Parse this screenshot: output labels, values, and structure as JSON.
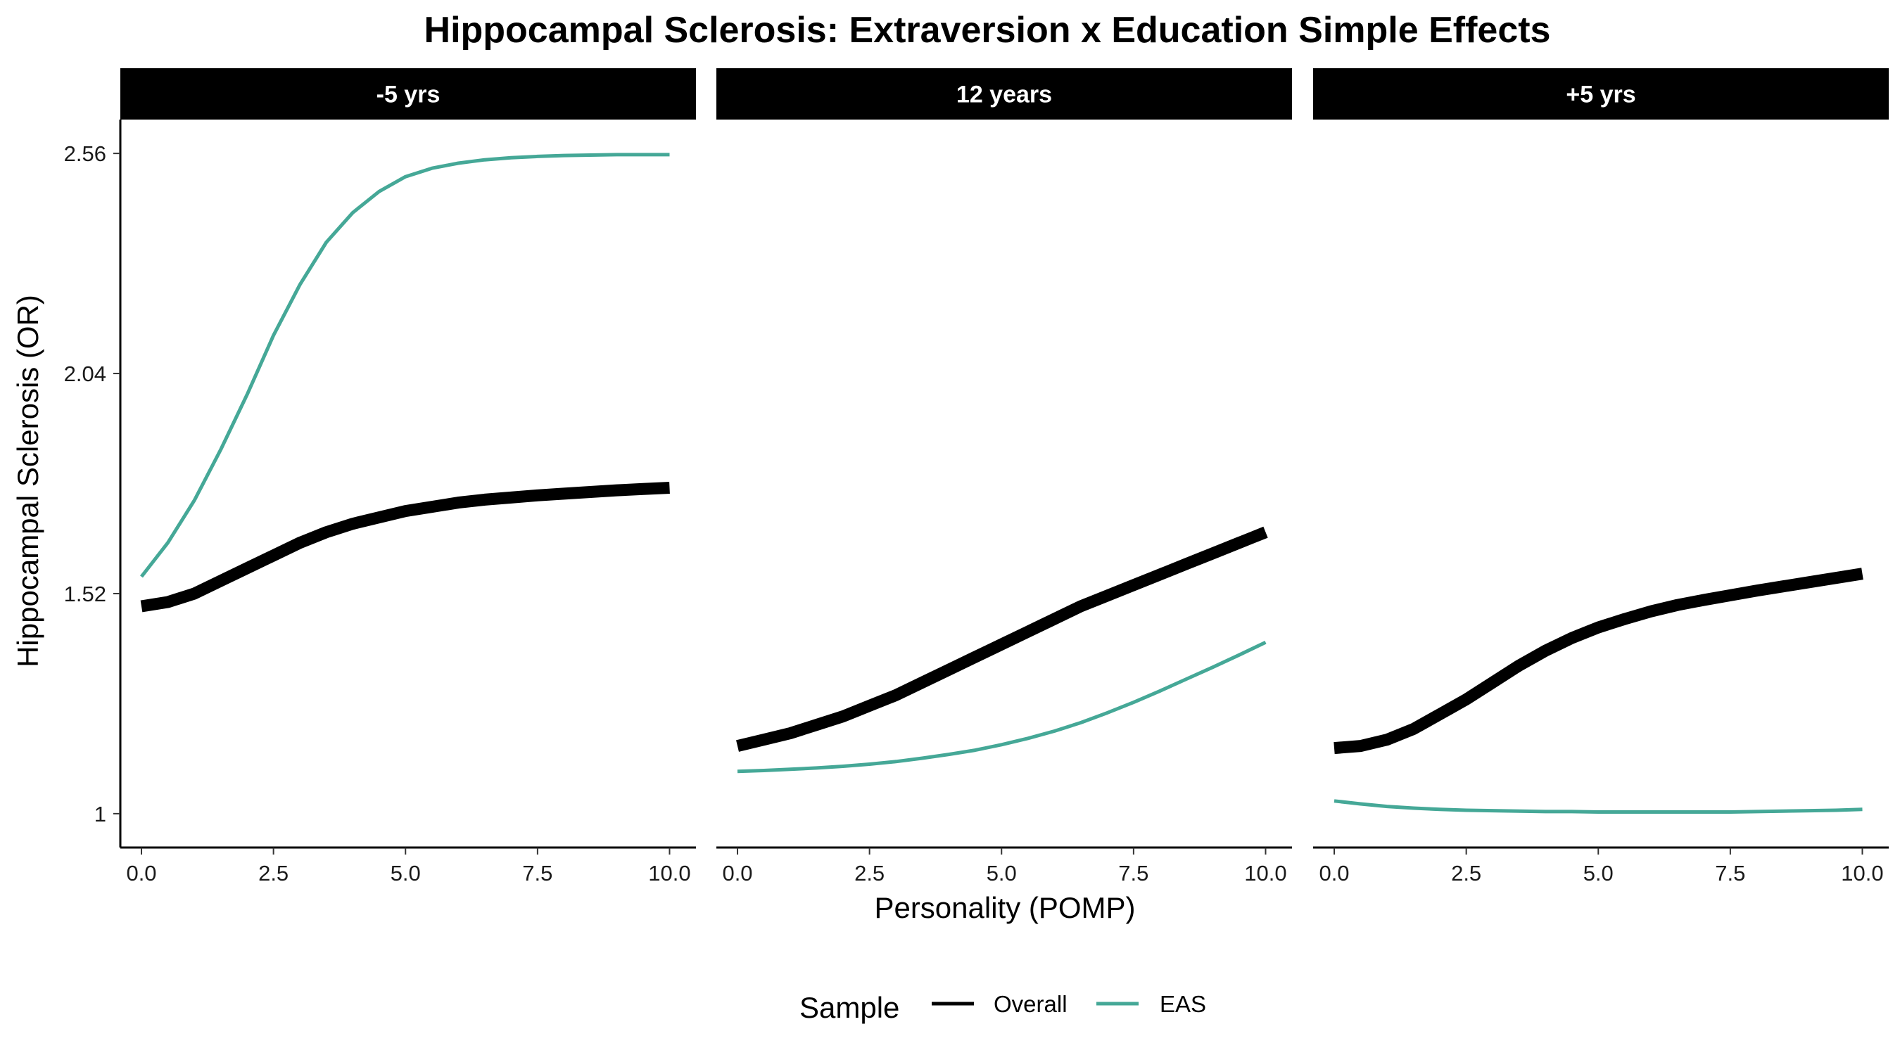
{
  "chart_data": {
    "type": "line",
    "title": "Hippocampal Sclerosis: Extraversion x Education Simple Effects",
    "xlabel": "Personality (POMP)",
    "ylabel": "Hippocampal Sclerosis (OR)",
    "xlim": [
      -0.4,
      10.5
    ],
    "ylim": [
      0.92,
      2.64
    ],
    "x_ticks": [
      0.0,
      2.5,
      5.0,
      7.5,
      10.0
    ],
    "x_tick_labels": [
      "0.0",
      "2.5",
      "5.0",
      "7.5",
      "10.0"
    ],
    "y_ticks": [
      1.0,
      1.52,
      2.04,
      2.56
    ],
    "y_tick_labels": [
      "1",
      "1.52",
      "2.04",
      "2.56"
    ],
    "grid": false,
    "legend": {
      "title": "Sample",
      "position": "bottom",
      "entries": [
        {
          "name": "Overall",
          "color": "#000000"
        },
        {
          "name": "EAS",
          "color": "#45A897"
        }
      ]
    },
    "x": [
      0,
      0.5,
      1,
      1.5,
      2,
      2.5,
      3,
      3.5,
      4,
      4.5,
      5,
      5.5,
      6,
      6.5,
      7,
      7.5,
      8,
      8.5,
      9,
      9.5,
      10
    ],
    "panels": [
      {
        "label": "-5 yrs",
        "series": [
          {
            "name": "Overall",
            "color": "#000000",
            "values": [
              1.49,
              1.5,
              1.52,
              1.55,
              1.58,
              1.61,
              1.64,
              1.665,
              1.685,
              1.7,
              1.715,
              1.725,
              1.735,
              1.742,
              1.747,
              1.752,
              1.756,
              1.76,
              1.764,
              1.767,
              1.77
            ]
          },
          {
            "name": "EAS",
            "color": "#45A897",
            "values": [
              1.56,
              1.64,
              1.74,
              1.86,
              1.99,
              2.13,
              2.25,
              2.35,
              2.42,
              2.47,
              2.505,
              2.525,
              2.537,
              2.545,
              2.55,
              2.553,
              2.555,
              2.556,
              2.557,
              2.557,
              2.557
            ]
          }
        ]
      },
      {
        "label": "12 years",
        "series": [
          {
            "name": "Overall",
            "color": "#000000",
            "values": [
              1.16,
              1.175,
              1.19,
              1.21,
              1.23,
              1.255,
              1.28,
              1.31,
              1.34,
              1.37,
              1.4,
              1.43,
              1.46,
              1.49,
              1.515,
              1.54,
              1.565,
              1.59,
              1.615,
              1.64,
              1.665
            ]
          },
          {
            "name": "EAS",
            "color": "#45A897",
            "values": [
              1.1,
              1.102,
              1.105,
              1.108,
              1.112,
              1.117,
              1.123,
              1.131,
              1.14,
              1.15,
              1.163,
              1.178,
              1.195,
              1.215,
              1.238,
              1.263,
              1.29,
              1.318,
              1.346,
              1.375,
              1.405
            ]
          }
        ]
      },
      {
        "label": "+5 yrs",
        "series": [
          {
            "name": "Overall",
            "color": "#000000",
            "values": [
              1.155,
              1.16,
              1.175,
              1.2,
              1.235,
              1.27,
              1.31,
              1.35,
              1.385,
              1.415,
              1.44,
              1.46,
              1.478,
              1.493,
              1.505,
              1.516,
              1.527,
              1.537,
              1.547,
              1.557,
              1.567
            ]
          },
          {
            "name": "EAS",
            "color": "#45A897",
            "values": [
              1.03,
              1.023,
              1.017,
              1.013,
              1.01,
              1.008,
              1.007,
              1.006,
              1.005,
              1.005,
              1.004,
              1.004,
              1.004,
              1.004,
              1.004,
              1.004,
              1.005,
              1.006,
              1.007,
              1.008,
              1.01
            ]
          }
        ]
      }
    ]
  }
}
